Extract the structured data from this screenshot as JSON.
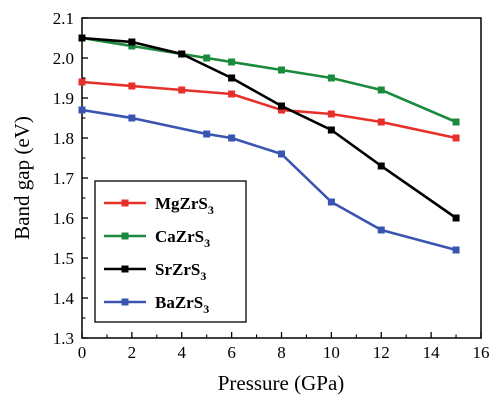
{
  "chart_data": {
    "type": "line",
    "xlabel": "Pressure (GPa)",
    "ylabel": "Band gap (eV)",
    "xlim": [
      0,
      16
    ],
    "ylim": [
      1.3,
      2.1
    ],
    "xticks": [
      "0",
      "2",
      "4",
      "6",
      "8",
      "10",
      "12",
      "14",
      "16"
    ],
    "yticks": [
      "1.3",
      "1.4",
      "1.5",
      "1.6",
      "1.7",
      "1.8",
      "1.9",
      "2.0",
      "2.1"
    ],
    "grid": false,
    "legend_position": "lower-left",
    "series": [
      {
        "name": "MgZrS",
        "subscript": "3",
        "color": "#e8302a",
        "x": [
          0,
          2,
          4,
          6,
          8,
          10,
          12,
          15
        ],
        "y": [
          1.94,
          1.93,
          1.92,
          1.91,
          1.87,
          1.86,
          1.84,
          1.8
        ]
      },
      {
        "name": "CaZrS",
        "subscript": "3",
        "color": "#1b8a3c",
        "x": [
          0,
          2,
          4,
          5,
          6,
          8,
          10,
          12,
          15
        ],
        "y": [
          2.05,
          2.03,
          2.01,
          2.0,
          1.99,
          1.97,
          1.95,
          1.92,
          1.84
        ]
      },
      {
        "name": "SrZrS",
        "subscript": "3",
        "color": "#000000",
        "x": [
          0,
          2,
          4,
          6,
          8,
          10,
          12,
          15
        ],
        "y": [
          2.05,
          2.04,
          2.01,
          1.95,
          1.88,
          1.82,
          1.73,
          1.6
        ]
      },
      {
        "name": "BaZrS",
        "subscript": "3",
        "color": "#3a55b0",
        "x": [
          0,
          2,
          5,
          6,
          8,
          10,
          12,
          15
        ],
        "y": [
          1.87,
          1.85,
          1.81,
          1.8,
          1.76,
          1.64,
          1.57,
          1.52
        ]
      }
    ]
  }
}
